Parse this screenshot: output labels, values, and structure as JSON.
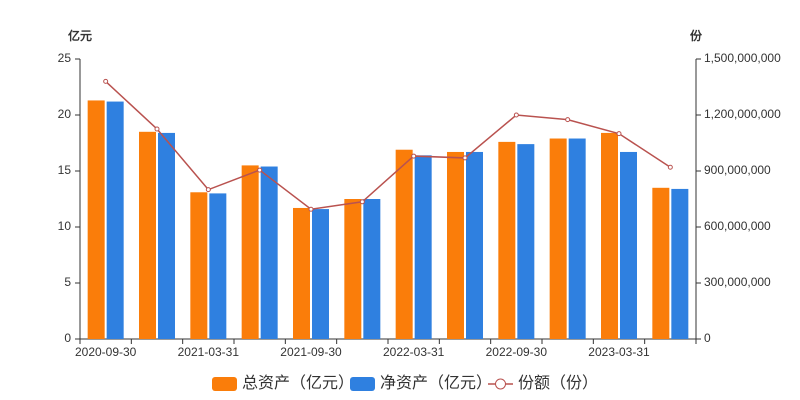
{
  "chart_data": {
    "type": "bar-line",
    "y_label": "亿元",
    "y2_label": "份",
    "categories": [
      "2020-09-30",
      null,
      "2021-03-31",
      null,
      "2021-09-30",
      null,
      "2022-03-31",
      null,
      "2022-09-30",
      null,
      "2023-03-31",
      null
    ],
    "series": [
      {
        "name": "总资产（亿元）",
        "type": "bar",
        "color": "#fa7d0a",
        "values": [
          21.3,
          18.5,
          13.1,
          15.5,
          11.7,
          12.5,
          16.9,
          16.7,
          17.6,
          17.9,
          18.4,
          13.5
        ]
      },
      {
        "name": "净资产（亿元）",
        "type": "bar",
        "color": "#2f80e0",
        "values": [
          21.2,
          18.4,
          13.0,
          15.4,
          11.6,
          12.5,
          16.4,
          16.7,
          17.4,
          17.9,
          16.7,
          13.4
        ]
      },
      {
        "name": "份额（份）",
        "type": "line",
        "axis": "y2",
        "color": "#b9524f",
        "values": [
          1380000000,
          1125000000,
          800000000,
          905000000,
          695000000,
          735000000,
          980000000,
          970000000,
          1200000000,
          1175000000,
          1100000000,
          920000000
        ]
      }
    ],
    "ylim": [
      0,
      25
    ],
    "yticks": [
      0,
      5,
      10,
      15,
      20,
      25
    ],
    "y2lim": [
      0,
      1500000000
    ],
    "y2ticks": [
      0,
      {
        "value": 300000000,
        "label": "300,000,000"
      },
      {
        "value": 600000000,
        "label": "600,000,000"
      },
      {
        "value": 900000000,
        "label": "900,000,000"
      },
      {
        "value": 1200000000,
        "label": "1,200,000,000"
      },
      {
        "value": 1500000000,
        "label": "1,500,000,000"
      }
    ],
    "legend": "bottom"
  }
}
